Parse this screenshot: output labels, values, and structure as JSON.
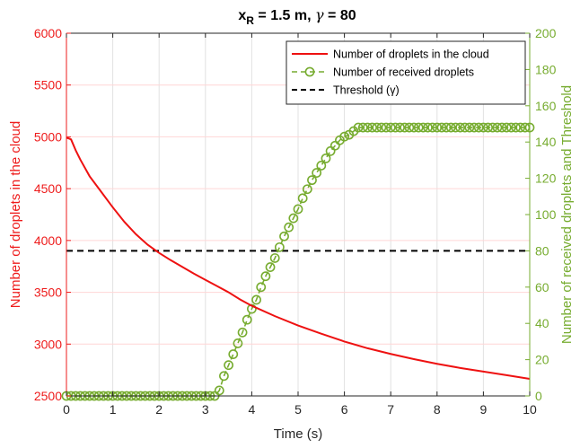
{
  "colors": {
    "left_axis": "#ee1c1c",
    "right_axis": "#77ac30",
    "cloud_series": "#ee1111",
    "received_series": "#77ac30",
    "threshold": "#000000",
    "grid_x": "#e2e2e2",
    "grid_y": "#ffd6d6",
    "axis": "#262626"
  },
  "chart_data": {
    "type": "line",
    "title": {
      "main": "x",
      "sub": "R",
      "rest": " = 1.5 m, ",
      "gamma": "γ",
      "tail": " = 80"
    },
    "xlabel": "Time (s)",
    "ylabel_left": "Number of droplets in the cloud",
    "ylabel_right": "Number of received droplets and Threshold",
    "xlim": [
      0,
      10
    ],
    "ylim_left": [
      2500,
      6000
    ],
    "ylim_right": [
      0,
      200
    ],
    "x_ticks": [
      "0",
      "1",
      "2",
      "3",
      "4",
      "5",
      "6",
      "7",
      "8",
      "9",
      "10"
    ],
    "y_left_ticks": [
      "2500",
      "3000",
      "3500",
      "4000",
      "4500",
      "5000",
      "5500",
      "6000"
    ],
    "y_right_ticks": [
      "0",
      "20",
      "40",
      "60",
      "80",
      "100",
      "120",
      "140",
      "160",
      "180",
      "200"
    ],
    "grid": true,
    "legend_position": "top-right",
    "legend": [
      "Number of droplets in the cloud",
      "Number of received droplets",
      "Threshold (γ)"
    ],
    "series": [
      {
        "name": "Number of droplets in the cloud",
        "axis": "left",
        "style": "solid",
        "x": [
          0,
          0.05,
          0.1,
          0.2,
          0.3,
          0.5,
          0.75,
          1.0,
          1.25,
          1.5,
          1.75,
          2.0,
          2.25,
          2.5,
          2.75,
          3.0,
          3.25,
          3.5,
          3.75,
          4.0,
          4.5,
          5.0,
          5.5,
          6.0,
          6.5,
          7.0,
          7.5,
          8.0,
          8.5,
          9.0,
          9.5,
          10.0
        ],
        "y": [
          4990,
          4985,
          4975,
          4870,
          4780,
          4620,
          4470,
          4320,
          4180,
          4060,
          3960,
          3880,
          3810,
          3745,
          3680,
          3620,
          3560,
          3500,
          3430,
          3370,
          3270,
          3180,
          3100,
          3025,
          2960,
          2905,
          2855,
          2810,
          2770,
          2735,
          2700,
          2665
        ]
      },
      {
        "name": "Number of received droplets",
        "axis": "right",
        "style": "dashed-circle",
        "x": [
          0,
          0.1,
          0.2,
          0.3,
          0.4,
          0.5,
          0.6,
          0.7,
          0.8,
          0.9,
          1.0,
          1.1,
          1.2,
          1.3,
          1.4,
          1.5,
          1.6,
          1.7,
          1.8,
          1.9,
          2.0,
          2.1,
          2.2,
          2.3,
          2.4,
          2.5,
          2.6,
          2.7,
          2.8,
          2.9,
          3.0,
          3.1,
          3.2,
          3.3,
          3.4,
          3.5,
          3.6,
          3.7,
          3.8,
          3.9,
          4.0,
          4.1,
          4.2,
          4.3,
          4.4,
          4.5,
          4.6,
          4.7,
          4.8,
          4.9,
          5.0,
          5.1,
          5.2,
          5.3,
          5.4,
          5.5,
          5.6,
          5.7,
          5.8,
          5.9,
          6.0,
          6.1,
          6.2,
          6.3,
          6.4,
          6.5,
          6.6,
          6.7,
          6.8,
          6.9,
          7.0,
          7.1,
          7.2,
          7.3,
          7.4,
          7.5,
          7.6,
          7.7,
          7.8,
          7.9,
          8.0,
          8.1,
          8.2,
          8.3,
          8.4,
          8.5,
          8.6,
          8.7,
          8.8,
          8.9,
          9.0,
          9.1,
          9.2,
          9.3,
          9.4,
          9.5,
          9.6,
          9.7,
          9.8,
          9.9,
          10.0
        ],
        "y": [
          0,
          0,
          0,
          0,
          0,
          0,
          0,
          0,
          0,
          0,
          0,
          0,
          0,
          0,
          0,
          0,
          0,
          0,
          0,
          0,
          0,
          0,
          0,
          0,
          0,
          0,
          0,
          0,
          0,
          0,
          0,
          0,
          0,
          3,
          11,
          17,
          23,
          29,
          35,
          42,
          48,
          53,
          60,
          66,
          71,
          76,
          82,
          88,
          93,
          98,
          103,
          109,
          114,
          119,
          123,
          127,
          131,
          135,
          138,
          141,
          143,
          144,
          146,
          148,
          148,
          148,
          148,
          148,
          148,
          148,
          148,
          148,
          148,
          148,
          148,
          148,
          148,
          148,
          148,
          148,
          148,
          148,
          148,
          148,
          148,
          148,
          148,
          148,
          148,
          148,
          148,
          148,
          148,
          148,
          148,
          148,
          148,
          148,
          148,
          148,
          148
        ]
      },
      {
        "name": "Threshold (γ)",
        "axis": "right",
        "style": "dashed",
        "x": [
          0,
          10
        ],
        "y": [
          80,
          80
        ]
      }
    ]
  }
}
